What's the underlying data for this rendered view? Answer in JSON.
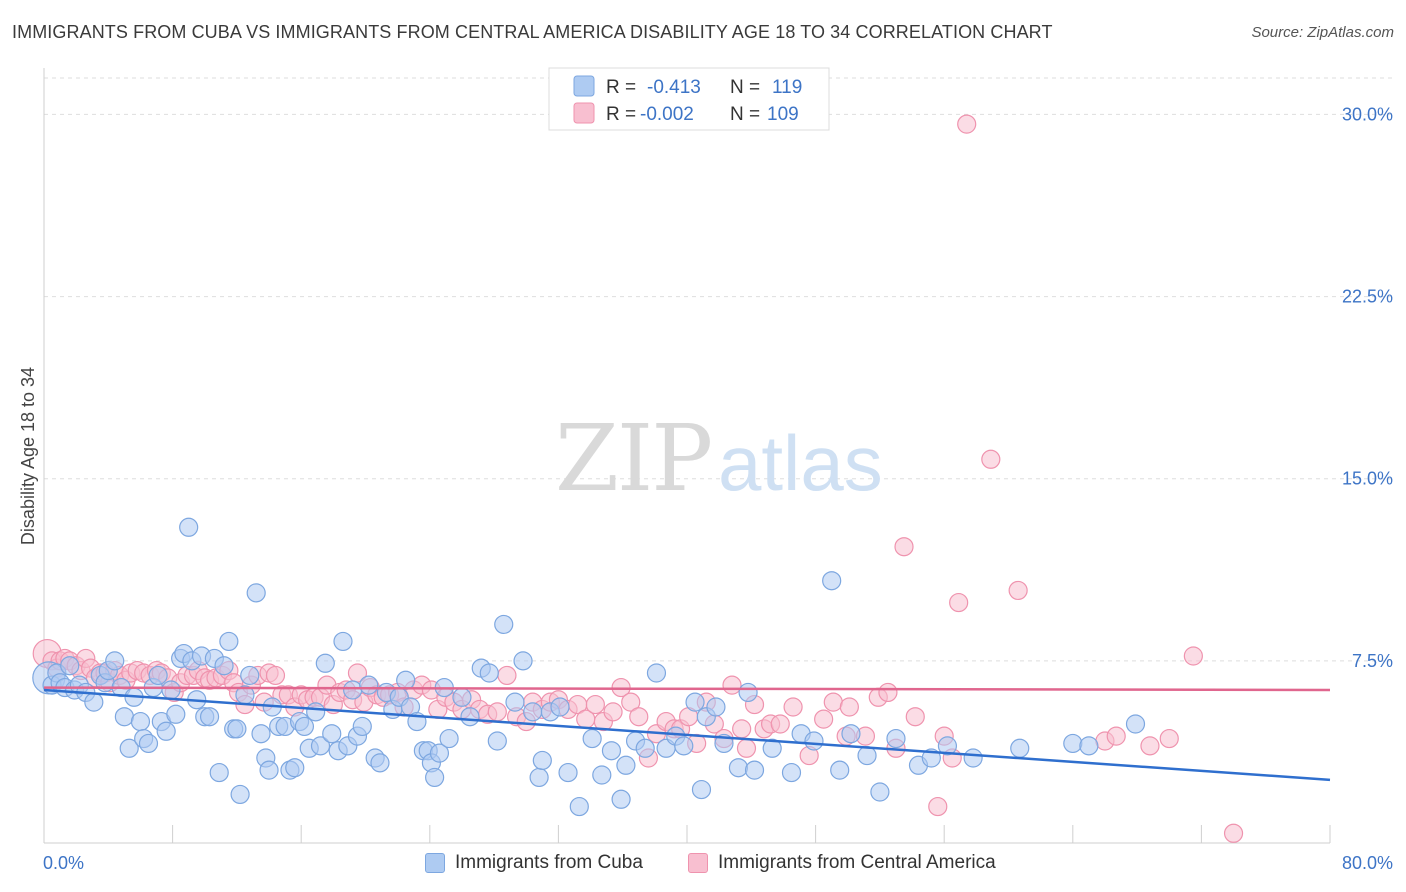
{
  "header": {
    "title": "IMMIGRANTS FROM CUBA VS IMMIGRANTS FROM CENTRAL AMERICA DISABILITY AGE 18 TO 34 CORRELATION CHART",
    "source": "Source: ZipAtlas.com"
  },
  "watermark": {
    "zip": "ZIP",
    "atlas": "atlas"
  },
  "legend": {
    "r_label": "R =",
    "n_label": "N =",
    "cuba": {
      "r": "-0.413",
      "n": "119"
    },
    "central_america": {
      "r": "-0.002",
      "n": "109"
    }
  },
  "colors": {
    "cuba_fill": "#aecbf2",
    "cuba_stroke": "#7da7e0",
    "cuba_line": "#2f6fce",
    "ca_fill": "#f8bfd0",
    "ca_stroke": "#ef93ae",
    "ca_line": "#e0668e",
    "axis_text": "#3d74c6",
    "grid": "#dedede"
  },
  "chart_data": {
    "type": "scatter",
    "title": "IMMIGRANTS FROM CUBA VS IMMIGRANTS FROM CENTRAL AMERICA DISABILITY AGE 18 TO 34 CORRELATION CHART",
    "xlabel": "",
    "ylabel": "Disability Age 18 to 34",
    "xlim": [
      0,
      80
    ],
    "ylim": [
      0,
      31.5
    ],
    "x_tick_labels": [
      "0.0%",
      "80.0%"
    ],
    "y_ticks": [
      7.5,
      15.0,
      22.5,
      30.0
    ],
    "y_tick_labels": [
      "7.5%",
      "15.0%",
      "22.5%",
      "30.0%"
    ],
    "grid": true,
    "legend_position": "top-center",
    "series": [
      {
        "name": "Immigrants from Cuba",
        "r": -0.413,
        "n": 119,
        "trend": [
          [
            0,
            6.3
          ],
          [
            80,
            2.6
          ]
        ],
        "points": [
          [
            0.3,
            6.8
          ],
          [
            0.5,
            6.5
          ],
          [
            0.8,
            7.0
          ],
          [
            1.0,
            6.6
          ],
          [
            1.3,
            6.4
          ],
          [
            1.6,
            7.3
          ],
          [
            1.9,
            6.3
          ],
          [
            2.2,
            6.5
          ],
          [
            2.6,
            6.2
          ],
          [
            3.1,
            5.8
          ],
          [
            3.5,
            6.9
          ],
          [
            3.8,
            6.6
          ],
          [
            4.0,
            7.1
          ],
          [
            4.4,
            7.5
          ],
          [
            4.8,
            6.4
          ],
          [
            5.0,
            5.2
          ],
          [
            5.3,
            3.9
          ],
          [
            5.6,
            6.0
          ],
          [
            6.0,
            5.0
          ],
          [
            6.2,
            4.3
          ],
          [
            6.5,
            4.1
          ],
          [
            6.8,
            6.4
          ],
          [
            7.1,
            6.9
          ],
          [
            7.3,
            5.0
          ],
          [
            7.6,
            4.6
          ],
          [
            7.9,
            6.3
          ],
          [
            8.2,
            5.3
          ],
          [
            8.5,
            7.6
          ],
          [
            8.7,
            7.8
          ],
          [
            9.0,
            13.0
          ],
          [
            9.2,
            7.5
          ],
          [
            9.5,
            5.9
          ],
          [
            9.8,
            7.7
          ],
          [
            10.0,
            5.2
          ],
          [
            10.3,
            5.2
          ],
          [
            10.6,
            7.6
          ],
          [
            10.9,
            2.9
          ],
          [
            11.2,
            7.3
          ],
          [
            11.5,
            8.3
          ],
          [
            11.8,
            4.7
          ],
          [
            12.0,
            4.7
          ],
          [
            12.2,
            2.0
          ],
          [
            12.5,
            6.1
          ],
          [
            12.8,
            6.9
          ],
          [
            13.2,
            10.3
          ],
          [
            13.5,
            4.5
          ],
          [
            13.8,
            3.5
          ],
          [
            14.0,
            3.0
          ],
          [
            14.2,
            5.6
          ],
          [
            14.6,
            4.8
          ],
          [
            15.0,
            4.8
          ],
          [
            15.3,
            3.0
          ],
          [
            15.6,
            3.1
          ],
          [
            15.9,
            5.0
          ],
          [
            16.2,
            4.8
          ],
          [
            16.5,
            3.9
          ],
          [
            16.9,
            5.4
          ],
          [
            17.2,
            4.0
          ],
          [
            17.5,
            7.4
          ],
          [
            17.9,
            4.5
          ],
          [
            18.3,
            3.8
          ],
          [
            18.6,
            8.3
          ],
          [
            18.9,
            4.0
          ],
          [
            19.2,
            6.3
          ],
          [
            19.5,
            4.4
          ],
          [
            19.8,
            4.8
          ],
          [
            20.2,
            6.5
          ],
          [
            20.6,
            3.5
          ],
          [
            20.9,
            3.3
          ],
          [
            21.3,
            6.2
          ],
          [
            21.7,
            5.5
          ],
          [
            22.1,
            6.0
          ],
          [
            22.5,
            6.7
          ],
          [
            22.8,
            5.6
          ],
          [
            23.2,
            5.0
          ],
          [
            23.6,
            3.8
          ],
          [
            23.9,
            3.8
          ],
          [
            24.1,
            3.3
          ],
          [
            24.3,
            2.7
          ],
          [
            24.6,
            3.7
          ],
          [
            24.9,
            6.4
          ],
          [
            25.2,
            4.3
          ],
          [
            26.0,
            6.0
          ],
          [
            26.5,
            5.2
          ],
          [
            27.2,
            7.2
          ],
          [
            27.7,
            7.0
          ],
          [
            28.2,
            4.2
          ],
          [
            28.6,
            9.0
          ],
          [
            29.3,
            5.8
          ],
          [
            29.8,
            7.5
          ],
          [
            30.4,
            5.4
          ],
          [
            30.8,
            2.7
          ],
          [
            31.0,
            3.4
          ],
          [
            31.5,
            5.4
          ],
          [
            32.1,
            5.6
          ],
          [
            32.6,
            2.9
          ],
          [
            33.3,
            1.5
          ],
          [
            34.1,
            4.3
          ],
          [
            34.7,
            2.8
          ],
          [
            35.3,
            3.8
          ],
          [
            35.9,
            1.8
          ],
          [
            36.2,
            3.2
          ],
          [
            36.8,
            4.2
          ],
          [
            37.4,
            3.9
          ],
          [
            38.1,
            7.0
          ],
          [
            38.7,
            3.9
          ],
          [
            39.3,
            4.4
          ],
          [
            39.8,
            4.0
          ],
          [
            40.5,
            5.8
          ],
          [
            40.9,
            2.2
          ],
          [
            41.2,
            5.2
          ],
          [
            41.8,
            5.6
          ],
          [
            42.3,
            4.1
          ],
          [
            43.2,
            3.1
          ],
          [
            43.8,
            6.2
          ],
          [
            44.2,
            3.0
          ],
          [
            45.3,
            3.9
          ],
          [
            46.5,
            2.9
          ],
          [
            47.1,
            4.5
          ],
          [
            47.9,
            4.2
          ],
          [
            49.0,
            10.8
          ],
          [
            49.5,
            3.0
          ],
          [
            50.2,
            4.5
          ],
          [
            51.2,
            3.6
          ],
          [
            52.0,
            2.1
          ],
          [
            53.0,
            4.3
          ],
          [
            54.4,
            3.2
          ],
          [
            55.2,
            3.5
          ],
          [
            56.2,
            4.0
          ],
          [
            57.8,
            3.5
          ],
          [
            60.7,
            3.9
          ],
          [
            64.0,
            4.1
          ],
          [
            65.0,
            4.0
          ],
          [
            67.9,
            4.9
          ]
        ]
      },
      {
        "name": "Immigrants from Central America",
        "r": -0.002,
        "n": 109,
        "trend": [
          [
            0,
            6.4
          ],
          [
            80,
            6.3
          ]
        ],
        "points": [
          [
            0.2,
            7.8
          ],
          [
            0.5,
            7.5
          ],
          [
            0.8,
            7.2
          ],
          [
            1.0,
            7.5
          ],
          [
            1.3,
            7.6
          ],
          [
            1.6,
            7.5
          ],
          [
            2.0,
            7.3
          ],
          [
            2.3,
            7.1
          ],
          [
            2.6,
            7.6
          ],
          [
            2.9,
            7.2
          ],
          [
            3.2,
            6.8
          ],
          [
            3.5,
            7.0
          ],
          [
            3.8,
            7.0
          ],
          [
            4.1,
            6.6
          ],
          [
            4.4,
            7.1
          ],
          [
            4.7,
            6.9
          ],
          [
            5.1,
            6.7
          ],
          [
            5.4,
            7.0
          ],
          [
            5.8,
            7.1
          ],
          [
            6.2,
            7.0
          ],
          [
            6.6,
            6.9
          ],
          [
            7.0,
            7.1
          ],
          [
            7.3,
            7.0
          ],
          [
            7.7,
            6.8
          ],
          [
            8.1,
            6.2
          ],
          [
            8.5,
            6.6
          ],
          [
            8.9,
            6.9
          ],
          [
            9.3,
            6.9
          ],
          [
            9.6,
            7.1
          ],
          [
            10.0,
            6.8
          ],
          [
            10.3,
            6.7
          ],
          [
            10.7,
            6.8
          ],
          [
            11.1,
            6.9
          ],
          [
            11.5,
            7.1
          ],
          [
            11.8,
            6.6
          ],
          [
            12.1,
            6.2
          ],
          [
            12.5,
            5.7
          ],
          [
            12.9,
            6.5
          ],
          [
            13.3,
            6.9
          ],
          [
            13.7,
            5.8
          ],
          [
            14.0,
            7.0
          ],
          [
            14.4,
            6.9
          ],
          [
            14.8,
            6.1
          ],
          [
            15.2,
            6.1
          ],
          [
            15.6,
            5.6
          ],
          [
            16.0,
            6.1
          ],
          [
            16.4,
            5.9
          ],
          [
            16.8,
            6.0
          ],
          [
            17.2,
            6.0
          ],
          [
            17.6,
            6.5
          ],
          [
            18.0,
            5.7
          ],
          [
            18.4,
            6.2
          ],
          [
            18.8,
            6.3
          ],
          [
            19.2,
            5.9
          ],
          [
            19.5,
            7.0
          ],
          [
            19.9,
            5.8
          ],
          [
            20.3,
            6.4
          ],
          [
            20.7,
            6.1
          ],
          [
            21.1,
            6.0
          ],
          [
            21.5,
            6.1
          ],
          [
            22.0,
            6.2
          ],
          [
            22.4,
            5.6
          ],
          [
            23.0,
            6.3
          ],
          [
            23.5,
            6.5
          ],
          [
            24.1,
            6.3
          ],
          [
            24.5,
            5.5
          ],
          [
            25.0,
            6.0
          ],
          [
            25.5,
            5.8
          ],
          [
            26.0,
            5.5
          ],
          [
            26.6,
            5.9
          ],
          [
            27.1,
            5.5
          ],
          [
            27.6,
            5.3
          ],
          [
            28.2,
            5.4
          ],
          [
            28.8,
            6.9
          ],
          [
            29.4,
            5.2
          ],
          [
            30.0,
            5.0
          ],
          [
            30.4,
            5.8
          ],
          [
            31.0,
            5.5
          ],
          [
            31.5,
            5.8
          ],
          [
            32.0,
            5.9
          ],
          [
            32.6,
            5.5
          ],
          [
            33.2,
            5.7
          ],
          [
            33.7,
            5.1
          ],
          [
            34.3,
            5.7
          ],
          [
            34.8,
            5.0
          ],
          [
            35.4,
            5.4
          ],
          [
            35.9,
            6.4
          ],
          [
            36.5,
            5.8
          ],
          [
            37.0,
            5.2
          ],
          [
            37.6,
            3.5
          ],
          [
            38.1,
            4.5
          ],
          [
            38.7,
            5.0
          ],
          [
            39.2,
            4.7
          ],
          [
            39.6,
            4.7
          ],
          [
            40.1,
            5.2
          ],
          [
            40.6,
            4.1
          ],
          [
            41.2,
            5.8
          ],
          [
            41.7,
            4.9
          ],
          [
            42.3,
            4.3
          ],
          [
            42.8,
            6.5
          ],
          [
            43.4,
            4.7
          ],
          [
            43.7,
            3.9
          ],
          [
            44.2,
            5.7
          ],
          [
            44.8,
            4.7
          ],
          [
            45.2,
            4.9
          ],
          [
            45.8,
            4.9
          ],
          [
            46.6,
            5.6
          ],
          [
            47.6,
            3.6
          ],
          [
            48.5,
            5.1
          ],
          [
            49.1,
            5.8
          ],
          [
            49.9,
            4.4
          ],
          [
            50.1,
            5.6
          ],
          [
            51.1,
            4.4
          ],
          [
            51.9,
            6.0
          ],
          [
            52.5,
            6.2
          ],
          [
            53.0,
            3.9
          ],
          [
            53.5,
            12.2
          ],
          [
            54.2,
            5.2
          ],
          [
            55.6,
            1.5
          ],
          [
            56.0,
            4.4
          ],
          [
            56.5,
            3.5
          ],
          [
            56.9,
            9.9
          ],
          [
            57.4,
            29.6
          ],
          [
            58.9,
            15.8
          ],
          [
            60.6,
            10.4
          ],
          [
            66.0,
            4.2
          ],
          [
            66.7,
            4.4
          ],
          [
            68.8,
            4.0
          ],
          [
            70.0,
            4.3
          ],
          [
            71.5,
            7.7
          ],
          [
            74.0,
            0.4
          ]
        ]
      }
    ]
  },
  "bottom_legend": {
    "cuba_label": "Immigrants from Cuba",
    "ca_label": "Immigrants from Central America"
  }
}
